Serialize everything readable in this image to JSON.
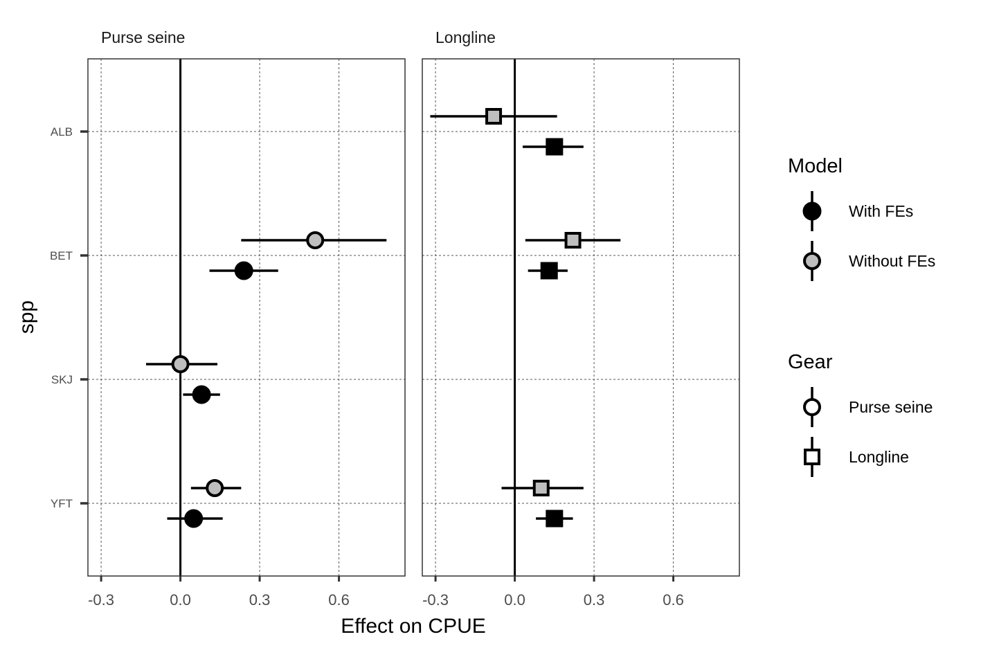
{
  "chart_data": {
    "type": "scatter",
    "subtype": "point-range (coefficient plot), faceted by gear",
    "xlabel": "Effect on CPUE",
    "ylabel": "spp",
    "xlim": [
      -0.35,
      0.85
    ],
    "x_ticks": [
      -0.3,
      0.0,
      0.3,
      0.6
    ],
    "x_tick_labels": [
      "-0.3",
      "0.0",
      "0.3",
      "0.6"
    ],
    "categories": [
      "ALB",
      "BET",
      "SKJ",
      "YFT"
    ],
    "reference_line_x": 0,
    "grid": "dashed major gridlines",
    "facets": [
      {
        "title": "Purse seine",
        "points": [
          {
            "spp": "BET",
            "model": "Without FEs",
            "estimate": 0.51,
            "lower": 0.23,
            "upper": 0.78
          },
          {
            "spp": "BET",
            "model": "With FEs",
            "estimate": 0.24,
            "lower": 0.11,
            "upper": 0.37
          },
          {
            "spp": "SKJ",
            "model": "Without FEs",
            "estimate": 0.0,
            "lower": -0.13,
            "upper": 0.14
          },
          {
            "spp": "SKJ",
            "model": "With FEs",
            "estimate": 0.08,
            "lower": 0.01,
            "upper": 0.15
          },
          {
            "spp": "YFT",
            "model": "Without FEs",
            "estimate": 0.13,
            "lower": 0.04,
            "upper": 0.23
          },
          {
            "spp": "YFT",
            "model": "With FEs",
            "estimate": 0.05,
            "lower": -0.05,
            "upper": 0.16
          }
        ]
      },
      {
        "title": "Longline",
        "points": [
          {
            "spp": "ALB",
            "model": "Without FEs",
            "estimate": -0.08,
            "lower": -0.32,
            "upper": 0.16
          },
          {
            "spp": "ALB",
            "model": "With FEs",
            "estimate": 0.15,
            "lower": 0.03,
            "upper": 0.26
          },
          {
            "spp": "BET",
            "model": "Without FEs",
            "estimate": 0.22,
            "lower": 0.04,
            "upper": 0.4
          },
          {
            "spp": "BET",
            "model": "With FEs",
            "estimate": 0.13,
            "lower": 0.05,
            "upper": 0.2
          },
          {
            "spp": "YFT",
            "model": "Without FEs",
            "estimate": 0.1,
            "lower": -0.05,
            "upper": 0.26
          },
          {
            "spp": "YFT",
            "model": "With FEs",
            "estimate": 0.15,
            "lower": 0.08,
            "upper": 0.22
          }
        ]
      }
    ],
    "legends": [
      {
        "title": "Model",
        "entries": [
          {
            "label": "With FEs",
            "fill": "#000000"
          },
          {
            "label": "Without FEs",
            "fill": "#bebebe"
          }
        ]
      },
      {
        "title": "Gear",
        "entries": [
          {
            "label": "Purse seine",
            "shape": "circle"
          },
          {
            "label": "Longline",
            "shape": "square"
          }
        ]
      }
    ],
    "legend_position": "right",
    "colors": {
      "with_fes": "#000000",
      "without_fes": "#bebebe",
      "outline": "#000000"
    }
  }
}
